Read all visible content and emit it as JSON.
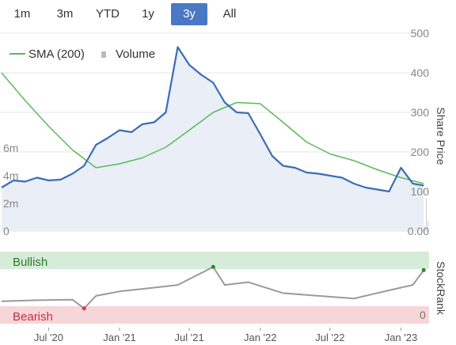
{
  "range_buttons": [
    {
      "label": "1m",
      "active": false
    },
    {
      "label": "3m",
      "active": false
    },
    {
      "label": "YTD",
      "active": false
    },
    {
      "label": "1y",
      "active": false
    },
    {
      "label": "3y",
      "active": true
    },
    {
      "label": "All",
      "active": false
    }
  ],
  "legend": {
    "sma_label": "SMA (200)",
    "volume_label": "Volume"
  },
  "colors": {
    "price_line": "#3b6db5",
    "price_fill": "#e9eef7",
    "sma_line": "#5cb85c",
    "volume_bars": "#cccccc",
    "bullish_band": "#d5ecd8",
    "bearish_band": "#f6d6d8",
    "stockrank_line": "#9a9a9a",
    "bullish_line": "#2a8a2a",
    "bearish_line": "#d9334a",
    "active_button": "#4a78c4"
  },
  "chart_data": {
    "type": "line",
    "title": "",
    "x_axis": {
      "ticks": [
        "Jul '20",
        "Jan '21",
        "Jul '21",
        "Jan '22",
        "Jul '22",
        "Jan '23"
      ]
    },
    "price_axis": {
      "title": "Share Price",
      "range": [
        0,
        500
      ],
      "ticks": [
        "500",
        "400",
        "300",
        "200",
        "100",
        "0.00"
      ]
    },
    "volume_axis": {
      "range": [
        0,
        8000000
      ],
      "ticks": [
        "6m",
        "4m",
        "2m",
        "0"
      ]
    },
    "series": [
      {
        "name": "Share Price",
        "x": [
          "2020-03",
          "2020-04",
          "2020-05",
          "2020-06",
          "2020-07",
          "2020-08",
          "2020-09",
          "2020-10",
          "2020-11",
          "2020-12",
          "2021-01",
          "2021-02",
          "2021-03",
          "2021-04",
          "2021-05",
          "2021-06",
          "2021-07",
          "2021-08",
          "2021-09",
          "2021-10",
          "2021-11",
          "2021-12",
          "2022-01",
          "2022-02",
          "2022-03",
          "2022-04",
          "2022-05",
          "2022-06",
          "2022-07",
          "2022-08",
          "2022-09",
          "2022-10",
          "2022-11",
          "2022-12",
          "2023-01",
          "2023-02",
          "2023-03"
        ],
        "values": [
          110,
          128,
          125,
          135,
          128,
          130,
          145,
          165,
          218,
          235,
          255,
          250,
          270,
          275,
          300,
          465,
          420,
          395,
          375,
          325,
          300,
          298,
          245,
          190,
          165,
          160,
          148,
          145,
          140,
          135,
          120,
          110,
          105,
          100,
          160,
          120,
          115
        ]
      },
      {
        "name": "SMA (200)",
        "x": [
          "2020-03",
          "2020-05",
          "2020-07",
          "2020-09",
          "2020-11",
          "2021-01",
          "2021-03",
          "2021-05",
          "2021-07",
          "2021-09",
          "2021-11",
          "2022-01",
          "2022-03",
          "2022-05",
          "2022-07",
          "2022-09",
          "2022-11",
          "2023-01",
          "2023-03"
        ],
        "values": [
          400,
          330,
          265,
          205,
          160,
          170,
          185,
          212,
          255,
          300,
          325,
          322,
          275,
          225,
          195,
          178,
          155,
          135,
          120
        ]
      }
    ],
    "stockrank": {
      "title": "StockRank",
      "labels": {
        "bullish": "Bullish",
        "bearish": "Bearish",
        "zero": "0"
      },
      "x": [
        "2020-03",
        "2020-06",
        "2020-09",
        "2020-10",
        "2020-11",
        "2021-01",
        "2021-04",
        "2021-06",
        "2021-09",
        "2021-10",
        "2021-12",
        "2022-03",
        "2022-06",
        "2022-09",
        "2022-12",
        "2023-02",
        "2023-03"
      ],
      "values": [
        25,
        27,
        28,
        12,
        35,
        43,
        50,
        55,
        88,
        55,
        60,
        40,
        35,
        30,
        45,
        55,
        82
      ]
    }
  }
}
